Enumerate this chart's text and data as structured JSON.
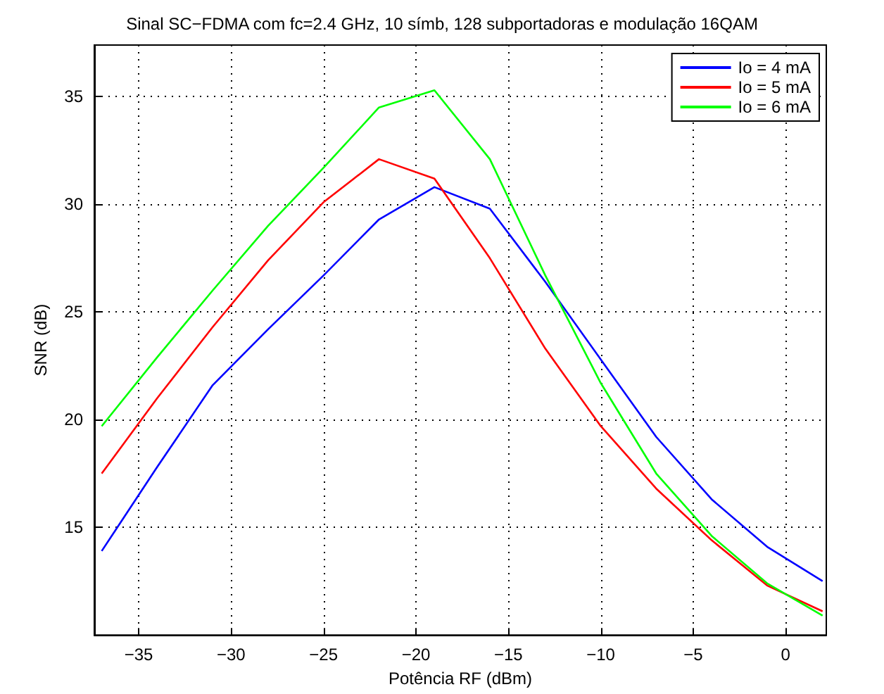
{
  "chart_data": {
    "type": "line",
    "title": "Sinal SC−FDMA com fc=2.4 GHz, 10 símb, 128 subportadoras e modulação 16QAM",
    "xlabel": "Potência RF (dBm)",
    "ylabel": "SNR (dB)",
    "x": [
      -37,
      -34,
      -31,
      -28,
      -25,
      -22,
      -19,
      -16,
      -13,
      -10,
      -7,
      -4,
      -1,
      2
    ],
    "series": [
      {
        "name": "Io = 4 mA",
        "color": "#0000ff",
        "values": [
          13.9,
          17.8,
          21.6,
          24.2,
          26.7,
          29.3,
          30.8,
          29.8,
          26.4,
          22.8,
          19.2,
          16.3,
          14.1,
          12.5
        ]
      },
      {
        "name": "Io = 5 mA",
        "color": "#ff0000",
        "values": [
          17.5,
          21.0,
          24.3,
          27.4,
          30.1,
          32.1,
          31.2,
          27.5,
          23.3,
          19.7,
          16.8,
          14.4,
          12.3,
          11.1
        ]
      },
      {
        "name": "Io = 6 mA",
        "color": "#00ff00",
        "values": [
          19.7,
          22.9,
          26.0,
          29.0,
          31.7,
          34.5,
          35.3,
          32.1,
          26.7,
          21.7,
          17.5,
          14.6,
          12.4,
          10.9
        ]
      }
    ],
    "xlim": [
      -37.4,
      2.2
    ],
    "xticks": [
      -35,
      -30,
      -25,
      -20,
      -15,
      -10,
      -5,
      0
    ],
    "ylim": [
      10,
      37.4
    ],
    "yticks": [
      15,
      20,
      25,
      30,
      35
    ],
    "grid": true,
    "legend": "top right",
    "marker": "none",
    "line_style": "solid"
  }
}
